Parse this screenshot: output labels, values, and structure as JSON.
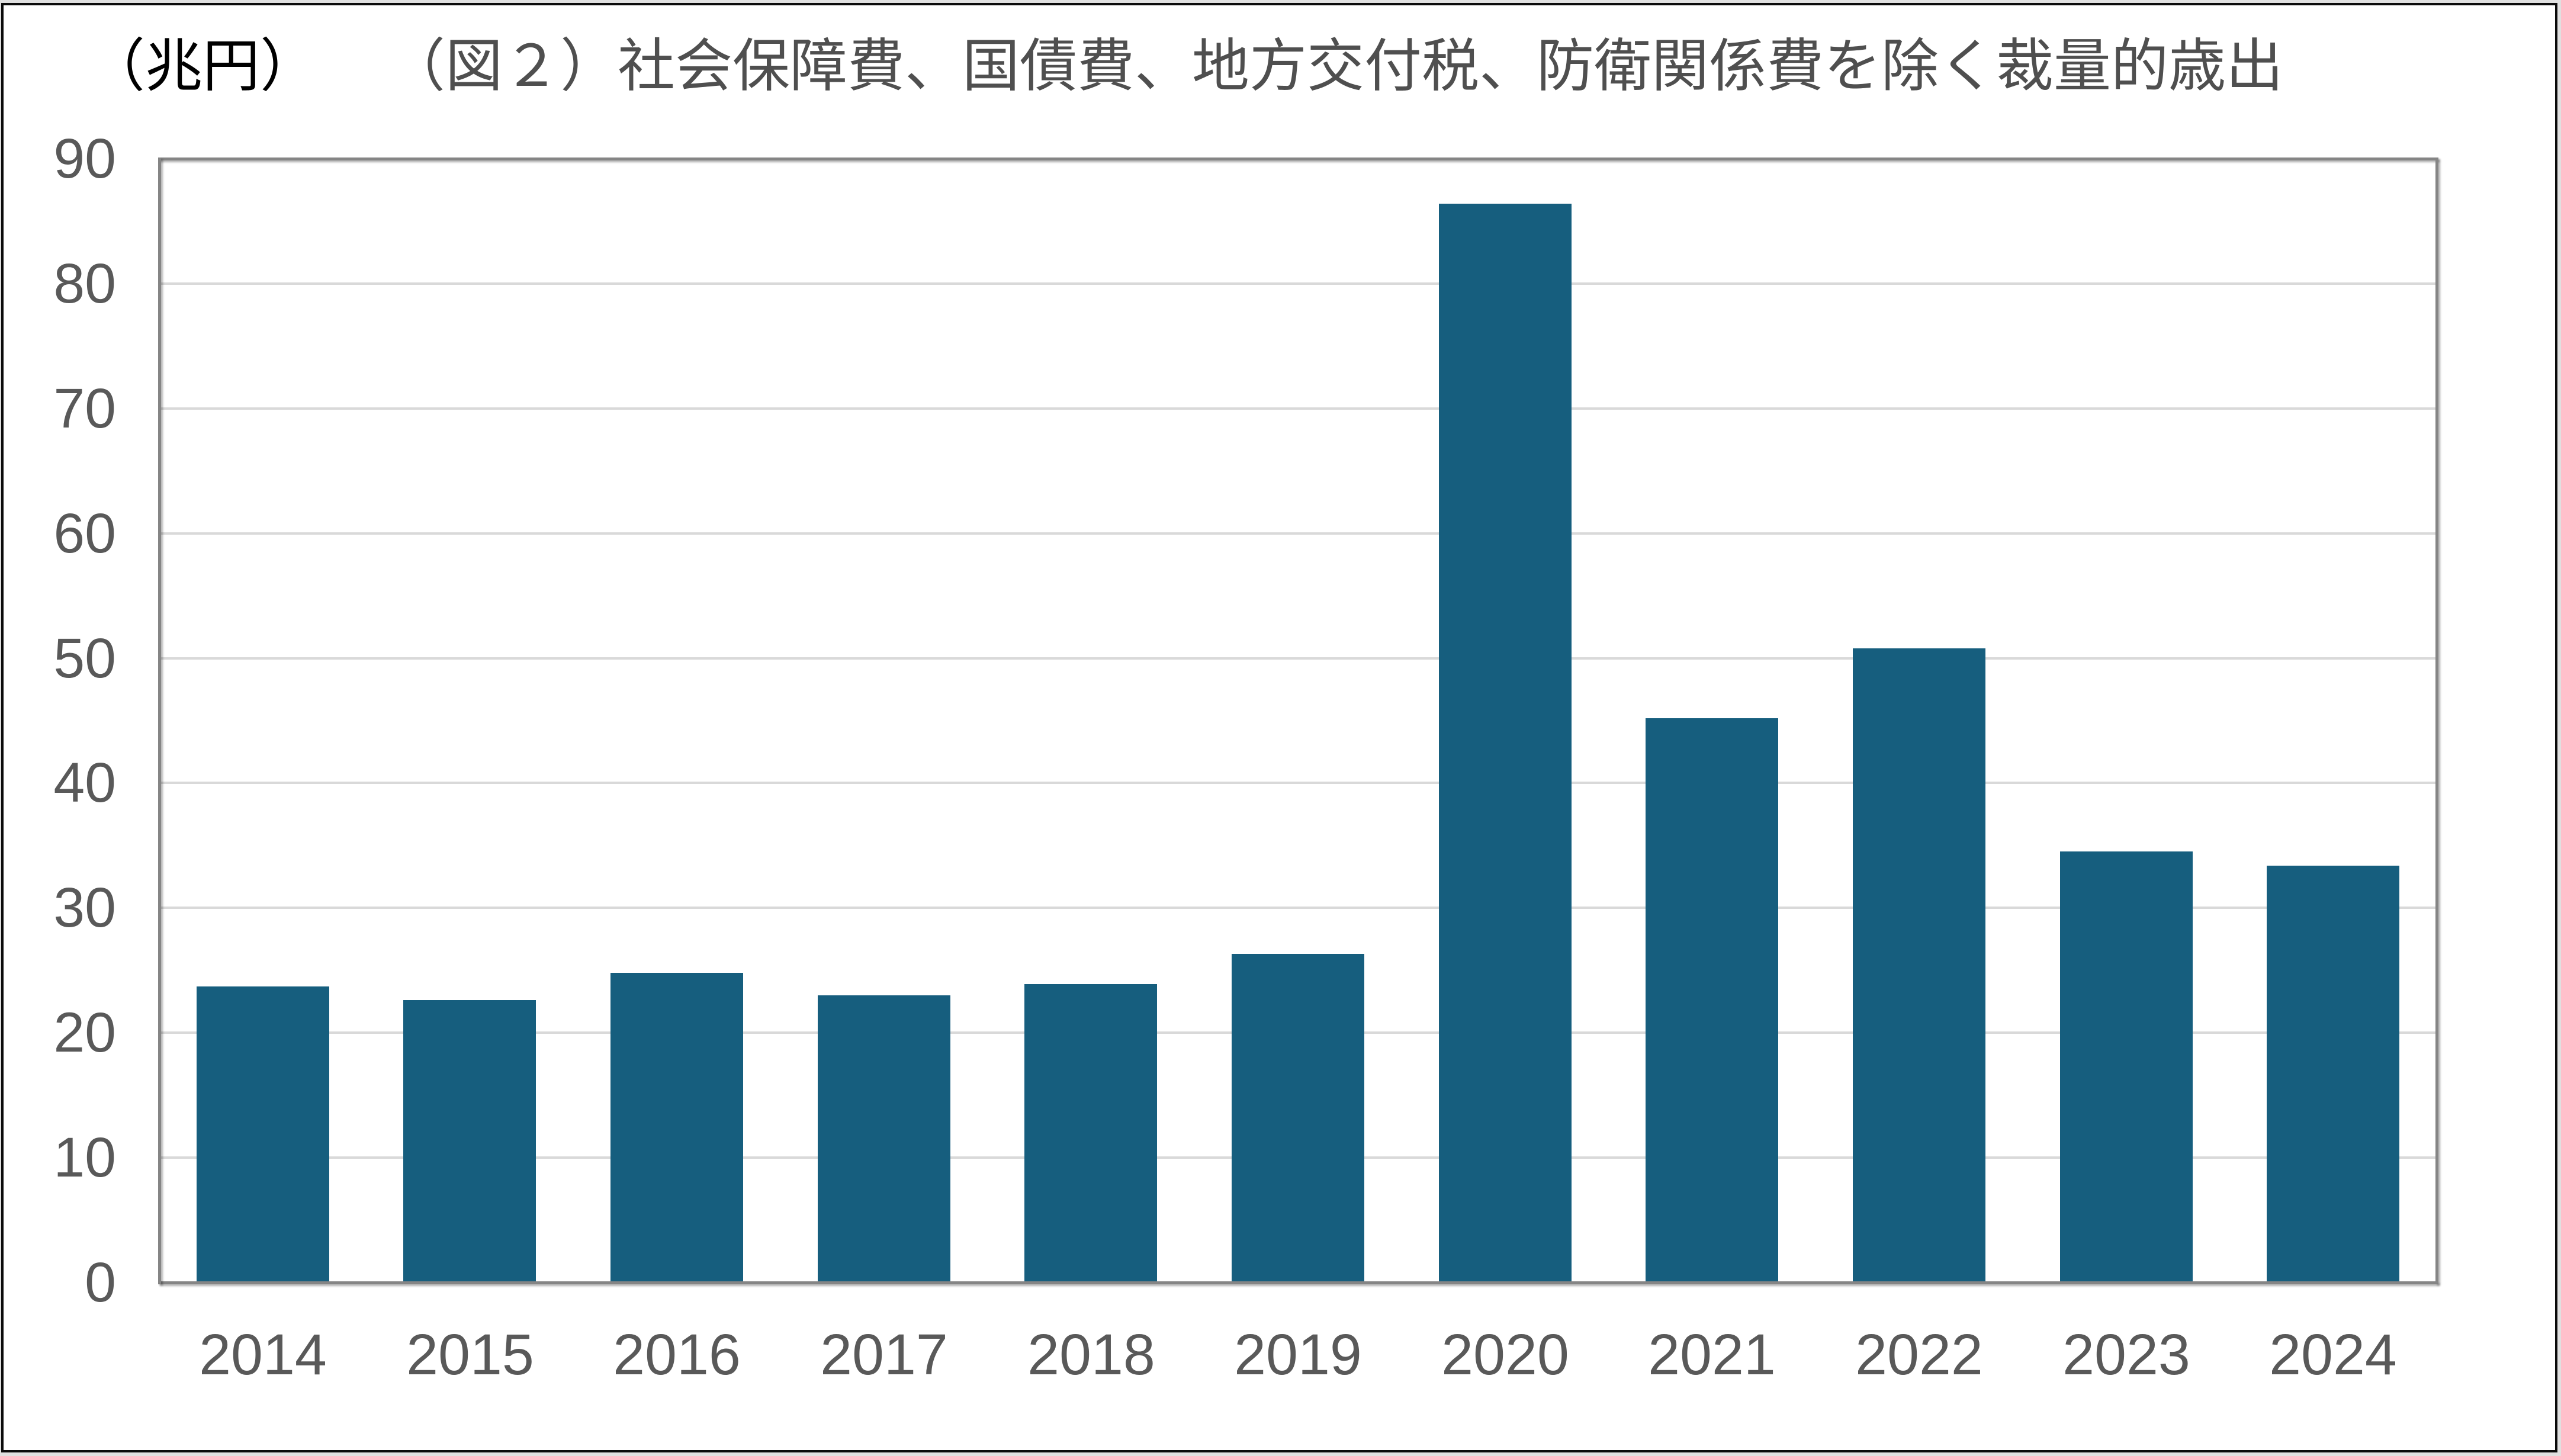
{
  "unit_label": "（兆円）",
  "title": "（図２）社会保障費、国債費、地方交付税、防衛関係費を除く裁量的歳出",
  "chart_data": {
    "type": "bar",
    "title": "（図２）社会保障費、国債費、地方交付税、防衛関係費を除く裁量的歳出",
    "unit_label": "（兆円）",
    "categories": [
      "2014",
      "2015",
      "2016",
      "2017",
      "2018",
      "2019",
      "2020",
      "2021",
      "2022",
      "2023",
      "2024"
    ],
    "values": [
      23.7,
      22.6,
      24.8,
      23.0,
      23.9,
      26.3,
      86.4,
      45.2,
      50.8,
      34.5,
      33.4
    ],
    "xlabel": "",
    "ylabel": "（兆円）",
    "ylim": [
      0,
      90
    ],
    "ytick_step": 10,
    "ytick_labels": [
      "0",
      "10",
      "20",
      "30",
      "40",
      "50",
      "60",
      "70",
      "80",
      "90"
    ],
    "grid": true,
    "legend_position": "none",
    "colors": {
      "bar": "#165e7e",
      "gridline": "#d9d9d9",
      "axis_border": "#858585",
      "tick_label": "#595959",
      "title": "#4f4f4f",
      "unit_label": "#000000"
    }
  }
}
